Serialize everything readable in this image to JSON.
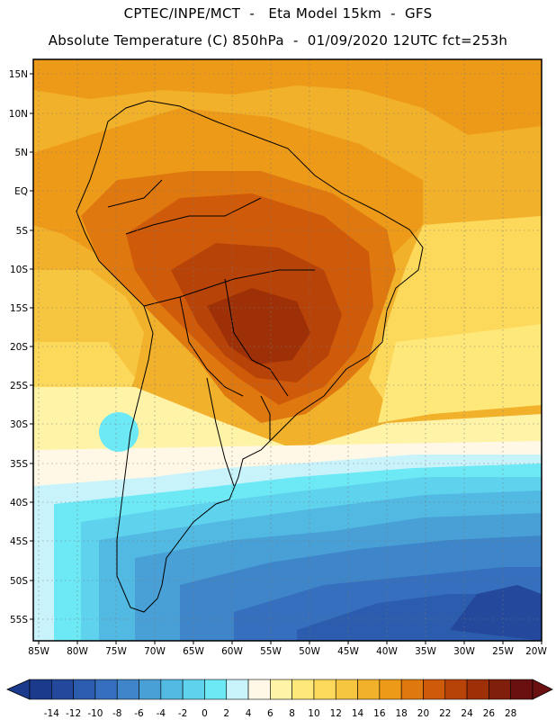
{
  "header": {
    "line1": "CPTEC/INPE/MCT  -   Eta Model 15km  -  GFS",
    "line2": "Absolute Temperature (C) 850hPa  -  01/09/2020 12UTC fct=253h"
  },
  "map": {
    "region": "South America",
    "variable": "Absolute Temperature (C) 850hPa",
    "lat_labels": [
      "15N",
      "10N",
      "5N",
      "EQ",
      "5S",
      "10S",
      "15S",
      "20S",
      "25S",
      "30S",
      "35S",
      "40S",
      "45S",
      "50S",
      "55S"
    ],
    "lon_labels": [
      "85W",
      "80W",
      "75W",
      "70W",
      "65W",
      "60W",
      "55W",
      "50W",
      "45W",
      "40W",
      "35W",
      "30W",
      "25W",
      "20W"
    ]
  },
  "colorbar": {
    "ticks": [
      "-14",
      "-12",
      "-10",
      "-8",
      "-6",
      "-4",
      "-2",
      "0",
      "2",
      "4",
      "6",
      "8",
      "10",
      "12",
      "14",
      "16",
      "18",
      "20",
      "22",
      "24",
      "26",
      "28"
    ],
    "colors": [
      "#1b3a8c",
      "#24499c",
      "#2c5cad",
      "#356fbd",
      "#3e85c9",
      "#48a0d6",
      "#52b9e2",
      "#5fd3ee",
      "#6de9f6",
      "#c9f3fb",
      "#fff8e6",
      "#fff3a8",
      "#ffe87a",
      "#fcd95a",
      "#f7c640",
      "#f2b12b",
      "#ee9a19",
      "#e07810",
      "#cf5a0a",
      "#b84308",
      "#9e3007",
      "#7f1f0c",
      "#6a1010"
    ]
  }
}
